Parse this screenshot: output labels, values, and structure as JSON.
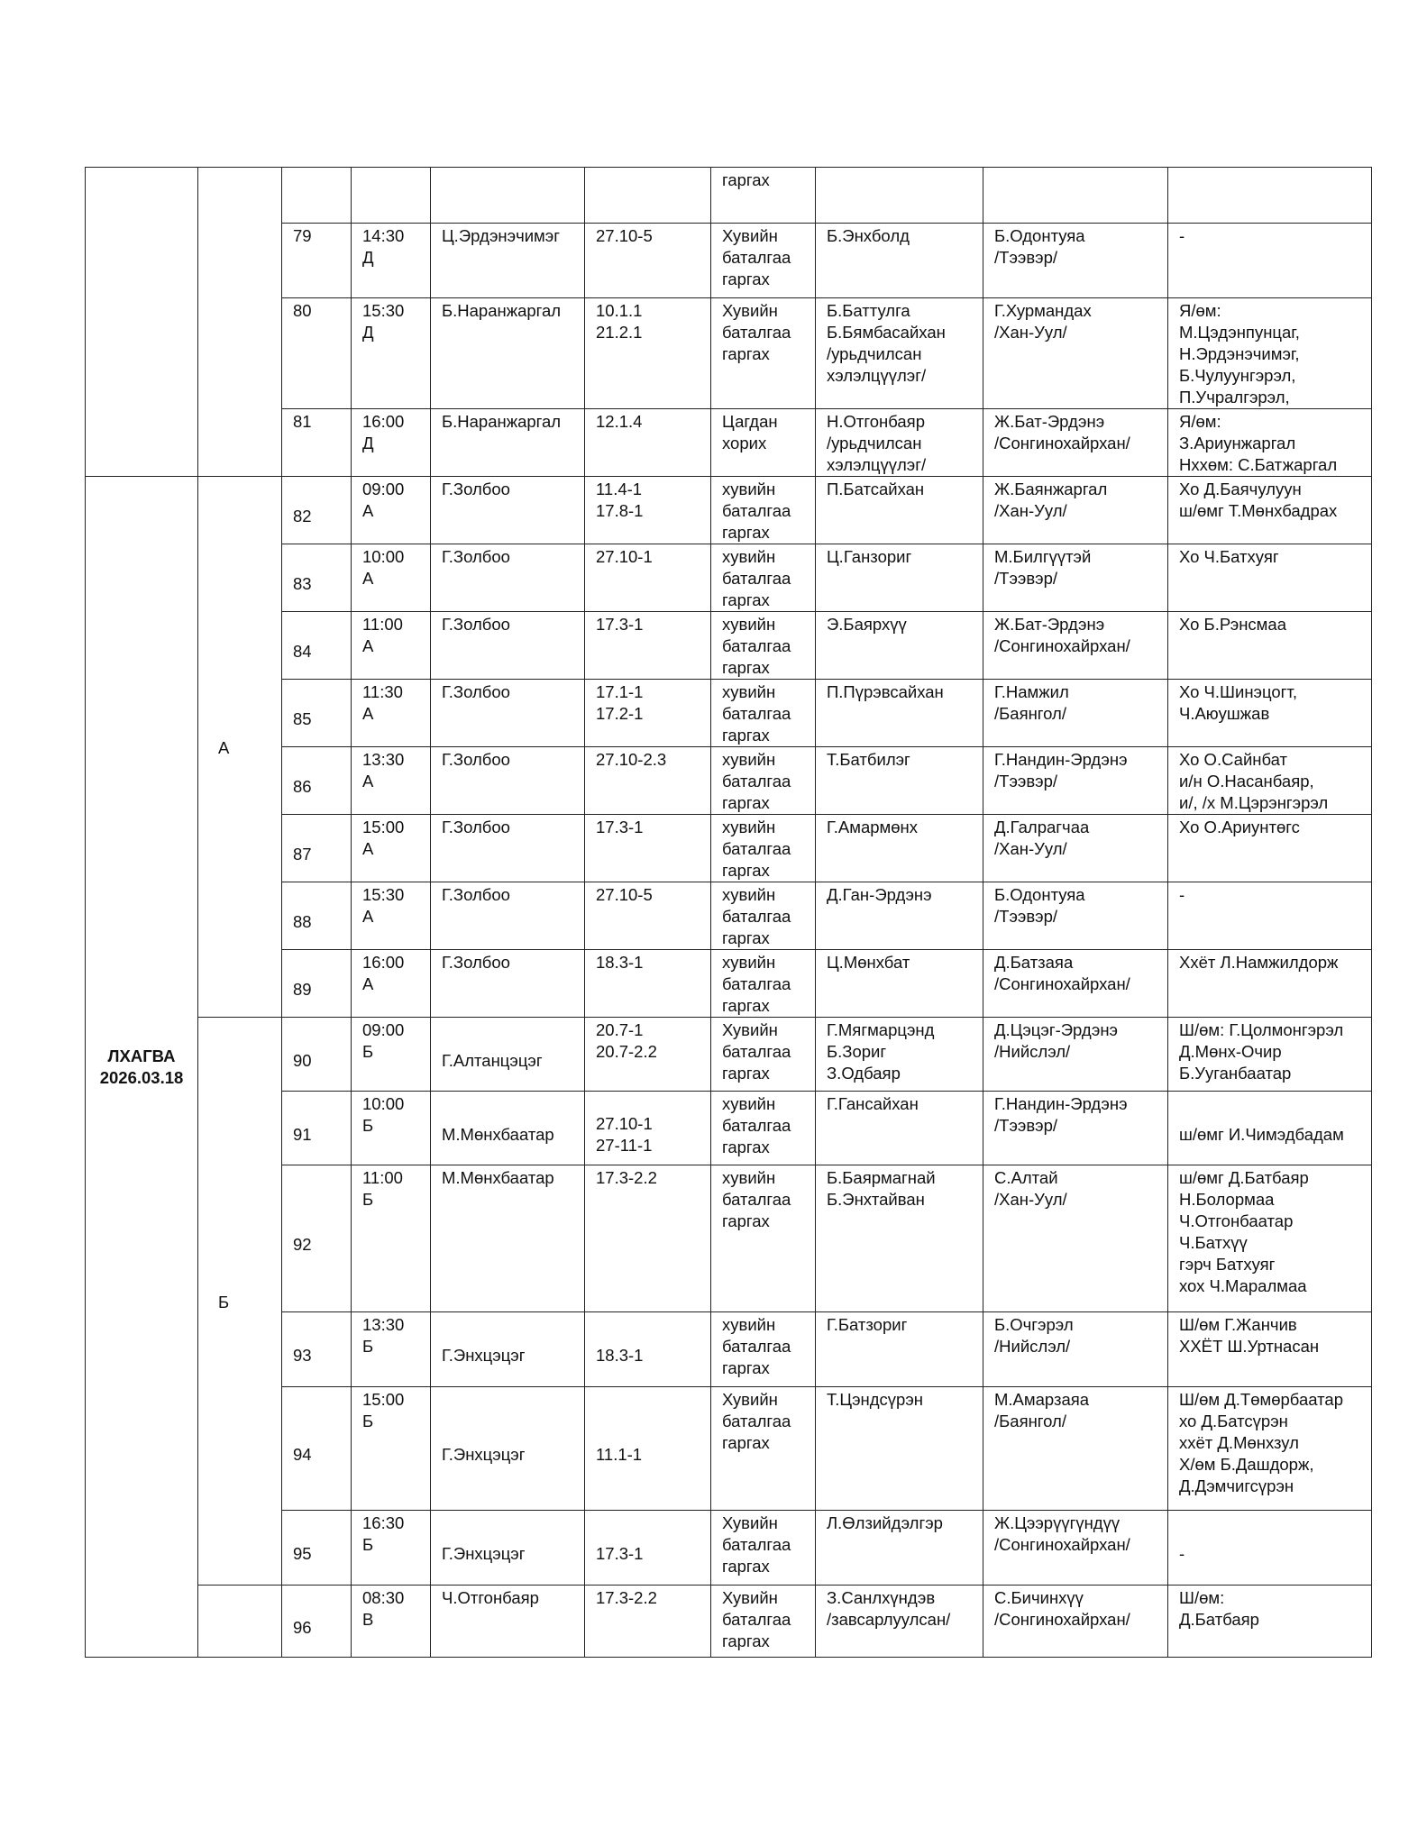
{
  "day": {
    "label": "ЛХАГВА",
    "date": "2026.03.18"
  },
  "groups": [
    {
      "label": ""
    },
    {
      "label": "А"
    },
    {
      "label": "Б"
    },
    {
      "label": ""
    }
  ],
  "rows": [
    {
      "no": "",
      "time": "",
      "judge": "",
      "article": "",
      "type": "гаргах",
      "defendant": "",
      "prosecutor": "",
      "notes": "",
      "group": 0
    },
    {
      "no": "79",
      "time": "14:30\nД",
      "judge": "Ц.Эрдэнэчимэг",
      "article": " 27.10-5",
      "type": "Хувийн\nбаталгаа\nгаргах",
      "defendant": "Б.Энхболд",
      "prosecutor": "Б.Одонтуяа\n/Тээвэр/",
      "notes": "-",
      "group": 0
    },
    {
      "no": "80",
      "time": "15:30\n Д",
      "judge": "Б.Наранжаргал",
      "article": "10.1.1\n21.2.1",
      "type": "Хувийн\nбаталгаа\nгаргах",
      "defendant": "Б.Баттулга\nБ.Бямбасайхан\n/урьдчилсан\nхэлэлцүүлэг/",
      "prosecutor": "Г.Хурмандах\n/Хан-Уул/",
      "notes": "Я/өм:\nМ.Цэдэнпунцаг,\nН.Эрдэнэчимэг,\nБ.Чулуунгэрэл,\nП.Учралгэрэл,",
      "group": 0
    },
    {
      "no": "81",
      "time": "16:00\n Д",
      "judge": "Б.Наранжаргал",
      "article": "12.1.4",
      "type": "Цагдан\n хорих",
      "defendant": "Н.Отгонбаяр\n/урьдчилсан\nхэлэлцүүлэг/",
      "prosecutor": "Ж.Бат-Эрдэнэ\n/Сонгинохайрхан/",
      "notes": "Я/өм:\nЗ.Ариунжаргал\nНххөм: С.Батжаргал",
      "group": 0
    },
    {
      "no": "82",
      "time": "09:00\n А",
      "judge": "Г.Золбоо",
      "article": "11.4-1\n17.8-1",
      "type": "хувийн\nбаталгаа\nгаргах",
      "defendant": "П.Батсайхан",
      "prosecutor": "Ж.Баянжаргал\n/Хан-Уул/",
      "notes": "Хо Д.Баячулуун\nш/өмг Т.Мөнхбадрах",
      "group": 1
    },
    {
      "no": "83",
      "time": "10:00\n А",
      "judge": "Г.Золбоо",
      "article": "27.10-1",
      "type": "хувийн\nбаталгаа\nгаргах",
      "defendant": "Ц.Ганзориг",
      "prosecutor": "М.Билгүүтэй\n/Тээвэр/",
      "notes": "Хо Ч.Батхуяг",
      "group": 1
    },
    {
      "no": "84",
      "time": "11:00\n А",
      "judge": "Г.Золбоо",
      "article": "17.3-1",
      "type": "хувийн\nбаталгаа\nгаргах",
      "defendant": "Э.Баярхүү",
      "prosecutor": "Ж.Бат-Эрдэнэ\n/Сонгинохайрхан/",
      "notes": "Хо Б.Рэнсмаа",
      "group": 1
    },
    {
      "no": "85",
      "time": "11:30\n А",
      "judge": "Г.Золбоо",
      "article": "17.1-1\n17.2-1",
      "type": "хувийн\nбаталгаа\nгаргах",
      "defendant": "П.Пүрэвсайхан",
      "prosecutor": "Г.Намжил\n/Баянгол/",
      "notes": "Хо Ч.Шинэцогт,\nЧ.Аюушжав",
      "group": 1
    },
    {
      "no": "86",
      "time": "13:30\n А",
      "judge": "Г.Золбоо",
      "article": "27.10-2.3",
      "type": "хувийн\nбаталгаа\nгаргах",
      "defendant": "Т.Батбилэг",
      "prosecutor": "Г.Нандин-Эрдэнэ\n/Тээвэр/",
      "notes": "Хо О.Сайнбат\nи/н О.Насанбаяр,\nи/, /х М.Цэрэнгэрэл",
      "group": 1
    },
    {
      "no": "87",
      "time": "15:00\n А",
      "judge": "Г.Золбоо",
      "article": "17.3-1",
      "type": "хувийн\nбаталгаа\nгаргах",
      "defendant": "Г.Амармөнх",
      "prosecutor": "Д.Галрагчаа\n/Хан-Уул/",
      "notes": "Хо О.Ариунтөгс",
      "group": 1
    },
    {
      "no": "88",
      "time": "15:30\n А",
      "judge": "Г.Золбоо",
      "article": "27.10-5",
      "type": "хувийн\nбаталгаа\nгаргах",
      "defendant": "Д.Ган-Эрдэнэ",
      "prosecutor": "Б.Одонтуяа\n/Тээвэр/",
      "notes": "-",
      "group": 1
    },
    {
      "no": "89",
      "time": "16:00\n А",
      "judge": "Г.Золбоо",
      "article": "18.3-1",
      "type": "хувийн\nбаталгаа\nгаргах",
      "defendant": "Ц.Мөнхбат",
      "prosecutor": "Д.Батзаяа\n/Сонгинохайрхан/",
      "notes": "Ххёт Л.Намжилдорж",
      "group": 1
    },
    {
      "no": "90",
      "time": "09:00\nБ",
      "judge": "Г.Алтанцэцэг",
      "article": "20.7-1\n20.7-2.2",
      "type": "Хувийн\nбаталгаа\nгаргах",
      "defendant": "Г.Мягмарцэнд\nБ.Зориг\nЗ.Одбаяр",
      "prosecutor": "Д.Цэцэг-Эрдэнэ\n/Нийслэл/",
      "notes": "Ш/өм: Г.Цолмонгэрэл\nД.Мөнх-Очир\nБ.Ууганбаатар",
      "group": 2
    },
    {
      "no": "91",
      "time": "10:00\nБ",
      "judge": "М.Мөнхбаатар",
      "article": "27.10-1\n27-11-1",
      "type": "хувийн\nбаталгаа\nгаргах",
      "defendant": "Г.Гансайхан",
      "prosecutor": "Г.Нандин-Эрдэнэ\n/Тээвэр/",
      "notes": "ш/өмг И.Чимэдбадам",
      "group": 2
    },
    {
      "no": "92",
      "time": "11:00\nБ",
      "judge": "М.Мөнхбаатар",
      "article": "17.3-2.2",
      "type": "хувийн\nбаталгаа\nгаргах",
      "defendant": "Б.Баярмагнай\nБ.Энхтайван",
      "prosecutor": "С.Алтай\n/Хан-Уул/",
      "notes": "ш/өмг Д.Батбаяр\nН.Болормаа\nЧ.Отгонбаатар\nЧ.Батхүү\nгэрч Батхуяг\nхох Ч.Маралмаа",
      "group": 2
    },
    {
      "no": "93",
      "time": "13:30\nБ",
      "judge": "Г.Энхцэцэг",
      "article": "18.3-1",
      "type": "хувийн\nбаталгаа\nгаргах",
      "defendant": "Г.Батзориг",
      "prosecutor": "Б.Очгэрэл\n/Нийслэл/",
      "notes": "Ш/өм Г.Жанчив\nХХЁТ Ш.Уртнасан",
      "group": 2
    },
    {
      "no": "94",
      "time": "15:00\nБ",
      "judge": "Г.Энхцэцэг",
      "article": "11.1-1",
      "type": "Хувийн\nбаталгаа\nгаргах",
      "defendant": "Т.Цэндсүрэн",
      "prosecutor": "М.Амарзаяа\n/Баянгол/",
      "notes": "Ш/өм Д.Төмөрбаатар\nхо Д.Батсүрэн\nххёт Д.Мөнхзул\nХ/өм Б.Дашдорж,\nД.Дэмчигсүрэн",
      "group": 2
    },
    {
      "no": "95",
      "time": "16:30\nБ",
      "judge": "Г.Энхцэцэг",
      "article": "17.3-1",
      "type": "Хувийн\nбаталгаа\nгаргах",
      "defendant": "Л.Өлзийдэлгэр",
      "prosecutor": "Ж.Цээрүүгүндүү\n/Сонгинохайрхан/",
      "notes": "-",
      "group": 2
    },
    {
      "no": "96",
      "time": "08:30\nВ",
      "judge": "Ч.Отгонбаяр",
      "article": "17.3-2.2",
      "type": "Хувийн\nбаталгаа\nгаргах",
      "defendant": "З.Санлхүндэв\n/завсарлуулсан/",
      "prosecutor": "С.Бичинхүү\n/Сонгинохайрхан/",
      "notes": "Ш/өм:\nД.Батбаяр",
      "group": 3
    }
  ]
}
